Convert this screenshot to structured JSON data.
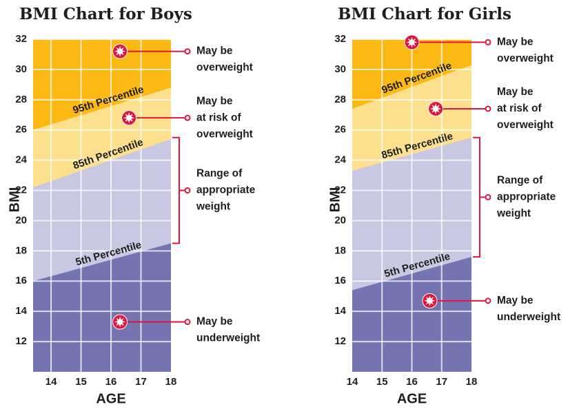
{
  "chart_data": [
    {
      "type": "area",
      "title": "BMI Chart for Boys",
      "x_label": "AGE",
      "y_label": "BMI",
      "xlim": [
        13.4,
        18
      ],
      "ylim": [
        10,
        32
      ],
      "xticks": [
        14,
        15,
        16,
        17,
        18
      ],
      "yticks": [
        12,
        14,
        16,
        18,
        20,
        22,
        24,
        26,
        28,
        30,
        32
      ],
      "grid": true,
      "background_color": "#fcb813",
      "series": [
        {
          "name": "5th Percentile",
          "color": "#7474b0",
          "x": [
            13.4,
            18
          ],
          "values": [
            16,
            18.5
          ]
        },
        {
          "name": "85th Percentile",
          "color": "#c9c8e2",
          "x": [
            13.4,
            18
          ],
          "values": [
            22.2,
            25.4
          ]
        },
        {
          "name": "95th Percentile",
          "color": "#fde08e",
          "x": [
            13.4,
            18
          ],
          "values": [
            26,
            28.8
          ]
        }
      ],
      "points": [
        {
          "x": 16.3,
          "y": 31.2,
          "label": [
            "May be",
            "overweight"
          ]
        },
        {
          "x": 16.6,
          "y": 26.8,
          "label": [
            "May be",
            "at risk of",
            "overweight"
          ]
        },
        {
          "x": 16.3,
          "y": 13.3,
          "label": [
            "May be",
            "underweight"
          ]
        }
      ],
      "range": {
        "low": 18.5,
        "high": 25.5,
        "label": [
          "Range of",
          "appropriate",
          "weight"
        ]
      }
    },
    {
      "type": "area",
      "title": "BMI Chart for Girls",
      "x_label": "AGE",
      "y_label": "BMI",
      "xlim": [
        14,
        18
      ],
      "ylim": [
        10,
        32
      ],
      "xticks": [
        14,
        15,
        16,
        17,
        18
      ],
      "yticks": [
        12,
        14,
        16,
        18,
        20,
        22,
        24,
        26,
        28,
        30,
        32
      ],
      "grid": true,
      "background_color": "#fcb813",
      "series": [
        {
          "name": "5th Percentile",
          "color": "#7474b0",
          "x": [
            14,
            18
          ],
          "values": [
            15.4,
            17.6
          ]
        },
        {
          "name": "85th Percentile",
          "color": "#c9c8e2",
          "x": [
            14,
            18
          ],
          "values": [
            23.3,
            25.5
          ]
        },
        {
          "name": "95th Percentile",
          "color": "#fde08e",
          "x": [
            14,
            18
          ],
          "values": [
            27.4,
            30.3
          ]
        }
      ],
      "points": [
        {
          "x": 16.0,
          "y": 31.8,
          "label": [
            "May be",
            "overweight"
          ]
        },
        {
          "x": 16.8,
          "y": 27.4,
          "label": [
            "May be",
            "at risk of",
            "overweight"
          ]
        },
        {
          "x": 16.6,
          "y": 14.7,
          "label": [
            "May be",
            "underweight"
          ]
        }
      ],
      "range": {
        "low": 17.6,
        "high": 25.5,
        "label": [
          "Range of",
          "appropriate",
          "weight"
        ]
      }
    }
  ]
}
